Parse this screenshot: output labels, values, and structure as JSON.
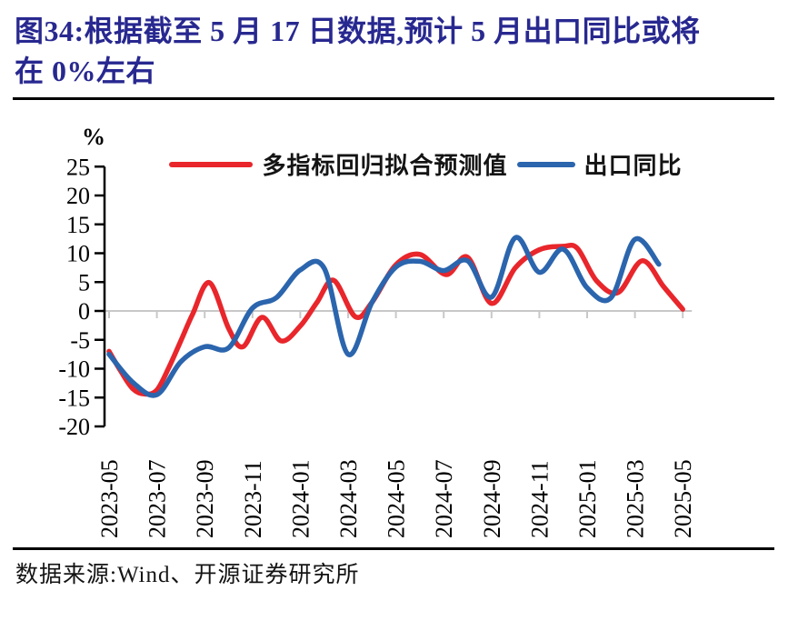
{
  "figure": {
    "title_lines": [
      "图34:根据截至 5 月 17 日数据,预计 5 月出口同比或将",
      "在 0%左右"
    ],
    "title_color": "#282890",
    "source_text": "数据来源:Wind、开源证券研究所"
  },
  "chart_data": {
    "type": "line",
    "title": "预计5月出口同比或将在0%左右",
    "ylabel": "%",
    "ylim": [
      -20,
      25
    ],
    "ytick_step": 5,
    "y_tick_labels": [
      "25",
      "20",
      "15",
      "10",
      "5",
      "0",
      "-5",
      "-10",
      "-15",
      "-20"
    ],
    "x_unit": "months since 2023-05",
    "x_tick_months": [
      0,
      2,
      4,
      6,
      8,
      10,
      12,
      14,
      16,
      18,
      20,
      22,
      24
    ],
    "x_tick_labels": [
      "2023-05",
      "2023-07",
      "2023-09",
      "2023-11",
      "2024-01",
      "2024-03",
      "2024-05",
      "2024-07",
      "2024-09",
      "2024-11",
      "2025-01",
      "2025-03",
      "2025-05"
    ],
    "grid": "zero-line-only",
    "legend_position": "top-center",
    "zero_line_color": "#c8c8c8",
    "axis_color": "#000000",
    "series": [
      {
        "name": "多指标回归拟合预测值",
        "color": "#e8262b",
        "points": [
          [
            0,
            -7.0
          ],
          [
            0.5,
            -10.5
          ],
          [
            1,
            -13.5
          ],
          [
            1.5,
            -14.4
          ],
          [
            2,
            -13.7
          ],
          [
            2.5,
            -9.8
          ],
          [
            3,
            -5.2
          ],
          [
            3.5,
            -0.5
          ],
          [
            4.2,
            4.9
          ],
          [
            5,
            -3.0
          ],
          [
            5.6,
            -6.2
          ],
          [
            6.4,
            -1.1
          ],
          [
            7.2,
            -5.2
          ],
          [
            8,
            -2.6
          ],
          [
            8.7,
            1.5
          ],
          [
            9.4,
            5.3
          ],
          [
            10.3,
            -1.0
          ],
          [
            11,
            1.5
          ],
          [
            12,
            8.0
          ],
          [
            13,
            9.8
          ],
          [
            14.1,
            6.3
          ],
          [
            15,
            9.3
          ],
          [
            16,
            1.3
          ],
          [
            17,
            7.5
          ],
          [
            18,
            10.6
          ],
          [
            19,
            11.2
          ],
          [
            19.6,
            10.8
          ],
          [
            20.4,
            5.2
          ],
          [
            21.3,
            3.2
          ],
          [
            22.3,
            8.7
          ],
          [
            23.2,
            4.2
          ],
          [
            24,
            0.3
          ]
        ]
      },
      {
        "name": "出口同比",
        "color": "#2b65ad",
        "points": [
          [
            0,
            -7.5
          ],
          [
            1,
            -12.4
          ],
          [
            2,
            -14.5
          ],
          [
            3,
            -8.8
          ],
          [
            4,
            -6.2
          ],
          [
            5,
            -6.4
          ],
          [
            6,
            0.5
          ],
          [
            7,
            2.3
          ],
          [
            8,
            7.1
          ],
          [
            9,
            7.4
          ],
          [
            10,
            -7.5
          ],
          [
            11,
            1.5
          ],
          [
            12,
            7.6
          ],
          [
            13,
            8.6
          ],
          [
            14,
            7.0
          ],
          [
            15,
            8.7
          ],
          [
            16,
            2.4
          ],
          [
            17,
            12.7
          ],
          [
            18,
            6.7
          ],
          [
            19,
            10.7
          ],
          [
            20,
            4.0
          ],
          [
            21,
            2.3
          ],
          [
            22,
            12.4
          ],
          [
            23,
            8.1
          ]
        ]
      }
    ]
  }
}
